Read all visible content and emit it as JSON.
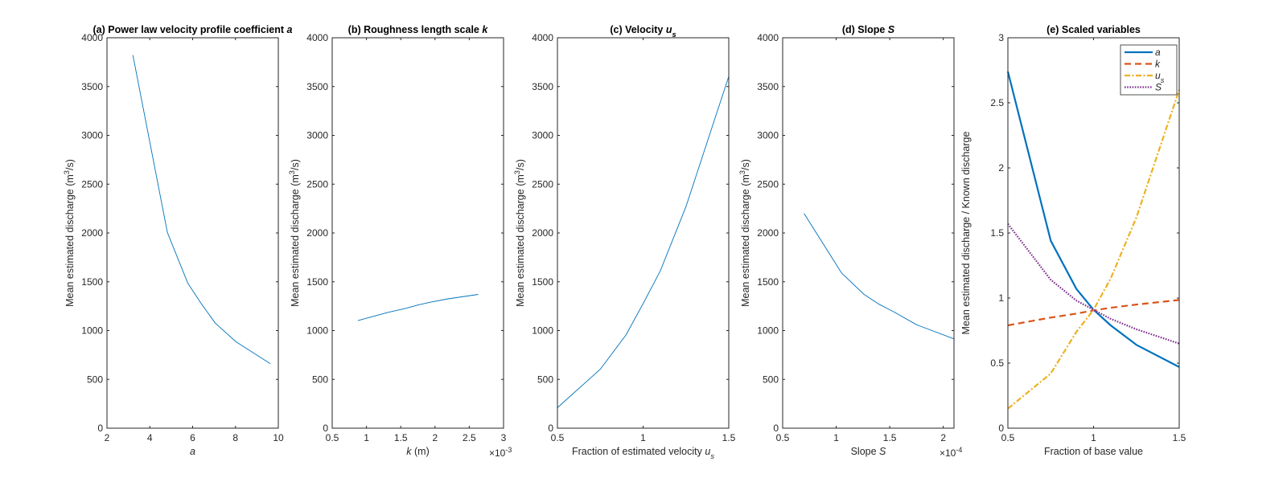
{
  "colors": {
    "a": "#0072BD",
    "k": "#D95319",
    "u_s": "#EDB120",
    "S": "#7E2F8E",
    "axis": "#262626"
  },
  "chart_data": [
    {
      "type": "line",
      "title": [
        {
          "t": "(a) Power law velocity profile coefficient "
        },
        {
          "t": "a",
          "i": true
        }
      ],
      "xlabel": [
        {
          "t": "a",
          "i": true
        }
      ],
      "ylabel": [
        {
          "t": "Mean estimated discharge (m"
        },
        {
          "t": "3",
          "sup": true
        },
        {
          "t": "/s)"
        }
      ],
      "xlim": [
        2,
        10
      ],
      "ylim": [
        0,
        4000
      ],
      "xticks": [
        2,
        4,
        6,
        8,
        10
      ],
      "xtick_labels": [
        "2",
        "4",
        "6",
        "8",
        "10"
      ],
      "yticks": [
        0,
        500,
        1000,
        1500,
        2000,
        2500,
        3000,
        3500,
        4000
      ],
      "ytick_labels": [
        "0",
        "500",
        "1000",
        "1500",
        "2000",
        "2500",
        "3000",
        "3500",
        "4000"
      ],
      "series": [
        {
          "key": "a",
          "x": [
            3.21,
            4.82,
            5.78,
            6.42,
            7.06,
            8.03,
            9.63
          ],
          "y": [
            3822,
            2005,
            1483,
            1270,
            1076,
            885,
            660
          ]
        }
      ]
    },
    {
      "type": "line",
      "title": [
        {
          "t": "(b) Roughness length scale "
        },
        {
          "t": "k",
          "i": true
        }
      ],
      "xlabel": [
        {
          "t": "k",
          "i": true
        },
        {
          "t": " (m)"
        }
      ],
      "xexponent": "-3",
      "ylabel": [
        {
          "t": "Mean estimated discharge (m"
        },
        {
          "t": "3",
          "sup": true
        },
        {
          "t": "/s)"
        }
      ],
      "xlim": [
        0.5,
        3
      ],
      "ylim": [
        0,
        4000
      ],
      "xticks": [
        0.5,
        1,
        1.5,
        2,
        2.5,
        3
      ],
      "xtick_labels": [
        "0.5",
        "1",
        "1.5",
        "2",
        "2.5",
        "3"
      ],
      "yticks": [
        0,
        500,
        1000,
        1500,
        2000,
        2500,
        3000,
        3500,
        4000
      ],
      "ytick_labels": [
        "0",
        "500",
        "1000",
        "1500",
        "2000",
        "2500",
        "3000",
        "3500",
        "4000"
      ],
      "series": [
        {
          "key": "a",
          "x": [
            0.875,
            1.31,
            1.575,
            1.75,
            1.925,
            2.19,
            2.63
          ],
          "y": [
            1102,
            1186,
            1228,
            1262,
            1290,
            1325,
            1370
          ]
        }
      ]
    },
    {
      "type": "line",
      "title": [
        {
          "t": "(c) Velocity "
        },
        {
          "t": "u",
          "i": true
        },
        {
          "t": "s",
          "i": true,
          "sub": true
        }
      ],
      "xlabel": [
        {
          "t": "Fraction of estimated velocity "
        },
        {
          "t": "u",
          "i": true
        },
        {
          "t": "s",
          "i": true,
          "sub": true
        }
      ],
      "ylabel": [
        {
          "t": "Mean estimated discharge (m"
        },
        {
          "t": "3",
          "sup": true
        },
        {
          "t": "/s)"
        }
      ],
      "xlim": [
        0.5,
        1.5
      ],
      "ylim": [
        0,
        4000
      ],
      "xticks": [
        0.5,
        1,
        1.5
      ],
      "xtick_labels": [
        "0.5",
        "1",
        "1.5"
      ],
      "yticks": [
        0,
        500,
        1000,
        1500,
        2000,
        2500,
        3000,
        3500,
        4000
      ],
      "ytick_labels": [
        "0",
        "500",
        "1000",
        "1500",
        "2000",
        "2500",
        "3000",
        "3500",
        "4000"
      ],
      "series": [
        {
          "key": "a",
          "x": [
            0.5,
            0.75,
            0.9,
            1.0,
            1.1,
            1.25,
            1.5
          ],
          "y": [
            210,
            604,
            955,
            1276,
            1610,
            2270,
            3604
          ]
        }
      ]
    },
    {
      "type": "line",
      "title": [
        {
          "t": "(d) Slope "
        },
        {
          "t": "S",
          "i": true
        }
      ],
      "xlabel": [
        {
          "t": "Slope "
        },
        {
          "t": "S",
          "i": true
        }
      ],
      "xexponent": "-4",
      "ylabel": [
        {
          "t": "Mean estimated discharge (m"
        },
        {
          "t": "3",
          "sup": true
        },
        {
          "t": "/s)"
        }
      ],
      "xlim": [
        0.5,
        2.1
      ],
      "ylim": [
        0,
        4000
      ],
      "xticks": [
        0.5,
        1,
        1.5,
        2
      ],
      "xtick_labels": [
        "0.5",
        "1",
        "1.5",
        "2"
      ],
      "yticks": [
        0,
        500,
        1000,
        1500,
        2000,
        2500,
        3000,
        3500,
        4000
      ],
      "ytick_labels": [
        "0",
        "500",
        "1000",
        "1500",
        "2000",
        "2500",
        "3000",
        "3500",
        "4000"
      ],
      "series": [
        {
          "key": "a",
          "x": [
            0.7,
            1.05,
            1.26,
            1.4,
            1.54,
            1.75,
            2.1
          ],
          "y": [
            2200,
            1590,
            1370,
            1270,
            1190,
            1060,
            915
          ]
        }
      ]
    },
    {
      "type": "line",
      "title": [
        {
          "t": "(e) Scaled variables"
        }
      ],
      "xlabel": [
        {
          "t": "Fraction of base value"
        }
      ],
      "ylabel": [
        {
          "t": "Mean estimated discharge / Known discharge"
        }
      ],
      "xlim": [
        0.5,
        1.5
      ],
      "ylim": [
        0,
        3
      ],
      "xticks": [
        0.5,
        1,
        1.5
      ],
      "xtick_labels": [
        "0.5",
        "1",
        "1.5"
      ],
      "yticks": [
        0,
        0.5,
        1,
        1.5,
        2,
        2.5,
        3
      ],
      "ytick_labels": [
        "0",
        "0.5",
        "1",
        "1.5",
        "2",
        "2.5",
        "3"
      ],
      "legend": "top-right",
      "series": [
        {
          "key": "a",
          "name": [
            {
              "t": "a",
              "i": true
            }
          ],
          "style": "solid",
          "x": [
            0.5,
            0.75,
            0.9,
            1.0,
            1.1,
            1.25,
            1.5
          ],
          "y": [
            2.74,
            1.44,
            1.07,
            0.91,
            0.79,
            0.64,
            0.47
          ]
        },
        {
          "key": "k",
          "name": [
            {
              "t": "k",
              "i": true
            }
          ],
          "style": "dashed",
          "x": [
            0.5,
            0.75,
            0.9,
            1.0,
            1.1,
            1.25,
            1.5
          ],
          "y": [
            0.79,
            0.85,
            0.88,
            0.905,
            0.925,
            0.95,
            0.985
          ]
        },
        {
          "key": "u_s",
          "name": [
            {
              "t": "u",
              "i": true
            },
            {
              "t": "s",
              "i": true,
              "sub": true
            }
          ],
          "style": "dashdot",
          "x": [
            0.5,
            0.75,
            0.9,
            1.0,
            1.1,
            1.25,
            1.5
          ],
          "y": [
            0.15,
            0.42,
            0.74,
            0.91,
            1.15,
            1.62,
            2.6
          ]
        },
        {
          "key": "S",
          "name": [
            {
              "t": "S",
              "i": true
            }
          ],
          "style": "dotted",
          "x": [
            0.5,
            0.75,
            0.9,
            1.0,
            1.1,
            1.25,
            1.5
          ],
          "y": [
            1.57,
            1.14,
            0.98,
            0.91,
            0.84,
            0.76,
            0.65
          ]
        }
      ]
    }
  ]
}
